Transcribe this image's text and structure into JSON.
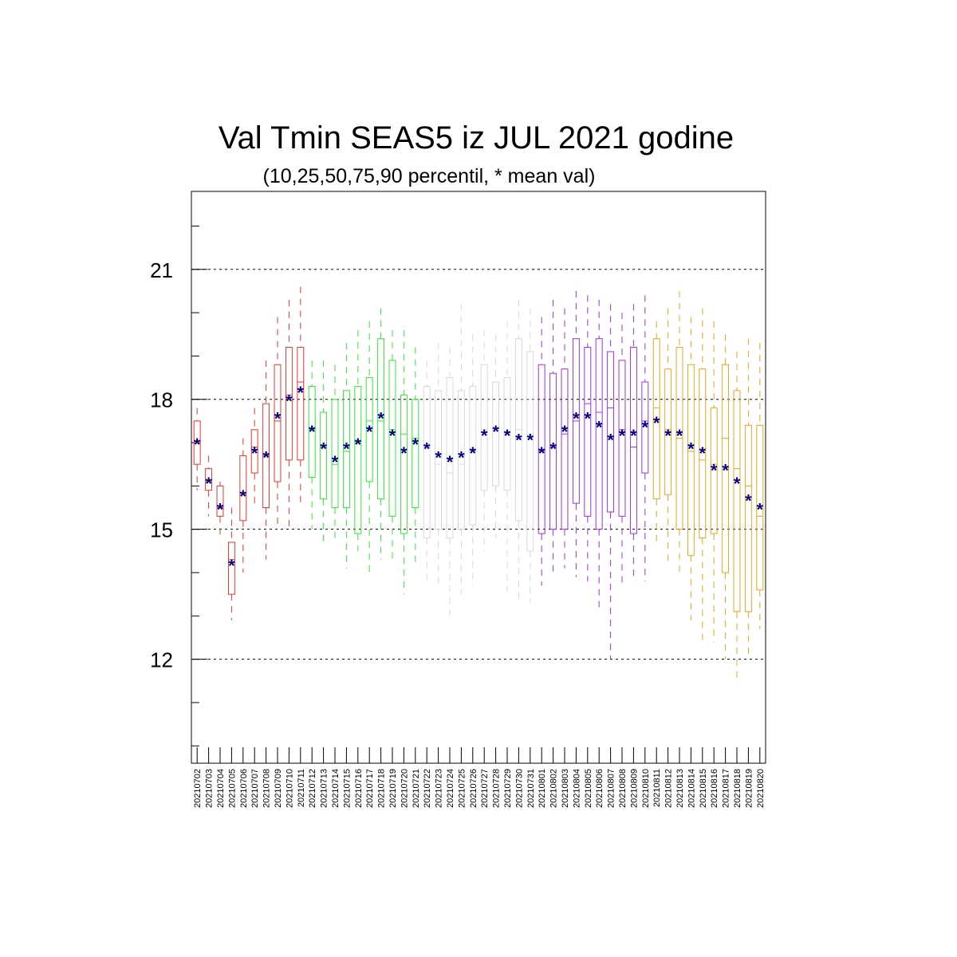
{
  "chart_data": {
    "type": "boxplot",
    "title": "Val Tmin SEAS5 iz JUL 2021 godine",
    "subtitle": "(10,25,50,75,90 percentil, * mean val)",
    "xlabel": "",
    "ylabel": "",
    "ylim": [
      9.6,
      22.8
    ],
    "y_major_ticks": [
      12,
      15,
      18,
      21
    ],
    "y_minor_tick_step": 1,
    "grid": "dashed horizontal lines at major y ticks",
    "mean_marker": "*",
    "mean_color": "#000080",
    "groups": [
      {
        "color": "#e8352e",
        "from": "20210702",
        "to": "20210711"
      },
      {
        "color": "#33e833",
        "from": "20210712",
        "to": "20210721"
      },
      {
        "color": "#d8d8d8",
        "from": "20210722",
        "to": "20210731"
      },
      {
        "color": "#a030e0",
        "from": "20210801",
        "to": "20210810"
      },
      {
        "color": "#f0a020",
        "from": "20210811",
        "to": "20210820"
      }
    ],
    "dates": [
      "20210702",
      "20210703",
      "20210704",
      "20210705",
      "20210706",
      "20210707",
      "20210708",
      "20210709",
      "20210710",
      "20210711",
      "20210712",
      "20210713",
      "20210714",
      "20210715",
      "20210716",
      "20210717",
      "20210718",
      "20210719",
      "20210720",
      "20210721",
      "20210722",
      "20210723",
      "20210724",
      "20210725",
      "20210726",
      "20210727",
      "20210728",
      "20210729",
      "20210730",
      "20210731",
      "20210801",
      "20210802",
      "20210803",
      "20210804",
      "20210805",
      "20210806",
      "20210807",
      "20210808",
      "20210809",
      "20210810",
      "20210811",
      "20210812",
      "20210813",
      "20210814",
      "20210815",
      "20210816",
      "20210817",
      "20210818",
      "20210819",
      "20210820"
    ],
    "p10": [
      15.9,
      15.3,
      14.8,
      12.9,
      14.0,
      15.5,
      14.3,
      15.0,
      15.0,
      15.5,
      15.0,
      14.6,
      14.8,
      14.1,
      14.5,
      13.9,
      14.3,
      14.3,
      13.5,
      14.2,
      13.8,
      13.7,
      13.0,
      13.5,
      13.7,
      14.5,
      14.8,
      13.5,
      13.3,
      13.3,
      13.7,
      14.0,
      14.1,
      13.9,
      13.8,
      13.2,
      12.0,
      13.7,
      13.9,
      13.8,
      14.7,
      14.2,
      14.0,
      12.9,
      12.4,
      12.4,
      12.0,
      11.5,
      12.0,
      12.7
    ],
    "p25": [
      16.5,
      15.9,
      15.3,
      13.5,
      15.2,
      16.3,
      15.5,
      16.1,
      16.6,
      16.6,
      16.2,
      15.7,
      15.5,
      15.5,
      14.9,
      16.1,
      15.7,
      15.3,
      14.9,
      15.5,
      14.8,
      15.0,
      14.8,
      15.0,
      15.1,
      15.9,
      16.0,
      15.9,
      15.2,
      14.5,
      14.9,
      15.0,
      15.0,
      15.6,
      15.3,
      15.0,
      15.4,
      15.3,
      14.9,
      16.3,
      15.7,
      15.8,
      15.0,
      14.4,
      14.8,
      14.9,
      14.0,
      13.1,
      13.1,
      13.6
    ],
    "p50": [
      17.0,
      16.1,
      15.5,
      14.3,
      15.8,
      16.9,
      16.7,
      17.5,
      18.1,
      18.4,
      17.3,
      16.9,
      16.5,
      16.8,
      17.0,
      17.5,
      17.5,
      17.3,
      17.2,
      17.1,
      16.9,
      16.5,
      16.3,
      16.5,
      16.8,
      17.3,
      17.3,
      17.2,
      17.3,
      17.2,
      16.8,
      16.9,
      17.2,
      17.5,
      17.9,
      17.7,
      17.8,
      17.3,
      16.9,
      17.5,
      17.8,
      17.3,
      17.1,
      16.8,
      16.6,
      16.5,
      17.1,
      16.4,
      16.0,
      15.3
    ],
    "p75": [
      17.5,
      16.4,
      16.0,
      14.7,
      16.7,
      17.3,
      17.9,
      18.8,
      19.2,
      19.2,
      18.3,
      17.7,
      18.0,
      18.2,
      18.3,
      18.5,
      19.4,
      18.9,
      18.1,
      18.0,
      18.3,
      18.2,
      18.5,
      18.2,
      18.3,
      18.8,
      18.4,
      18.5,
      19.4,
      19.1,
      18.8,
      18.6,
      18.7,
      19.4,
      19.2,
      19.4,
      19.1,
      18.9,
      19.2,
      18.4,
      19.4,
      18.7,
      19.2,
      18.8,
      18.7,
      17.8,
      18.8,
      18.2,
      17.4,
      17.4
    ],
    "p90": [
      17.8,
      16.7,
      16.1,
      15.5,
      17.1,
      17.8,
      18.9,
      19.9,
      20.3,
      20.6,
      18.9,
      18.9,
      18.8,
      19.3,
      19.6,
      19.8,
      20.1,
      19.6,
      19.6,
      19.2,
      18.9,
      19.3,
      19.2,
      20.2,
      19.5,
      19.6,
      19.5,
      19.8,
      20.3,
      20.1,
      19.9,
      20.3,
      20.1,
      20.5,
      20.4,
      20.3,
      20.2,
      20.0,
      20.2,
      20.4,
      19.8,
      20.1,
      20.5,
      19.9,
      20.1,
      19.8,
      19.5,
      19.1,
      19.4,
      19.3
    ],
    "mean": [
      17.0,
      16.1,
      15.5,
      14.2,
      15.8,
      16.8,
      16.7,
      17.6,
      18.0,
      18.2,
      17.3,
      16.9,
      16.6,
      16.9,
      17.0,
      17.3,
      17.6,
      17.2,
      16.8,
      17.0,
      16.9,
      16.7,
      16.6,
      16.7,
      16.8,
      17.2,
      17.3,
      17.2,
      17.1,
      17.1,
      16.8,
      16.9,
      17.3,
      17.6,
      17.6,
      17.4,
      17.1,
      17.2,
      17.2,
      17.4,
      17.5,
      17.2,
      17.2,
      16.9,
      16.8,
      16.4,
      16.4,
      16.1,
      15.7,
      15.5
    ]
  }
}
